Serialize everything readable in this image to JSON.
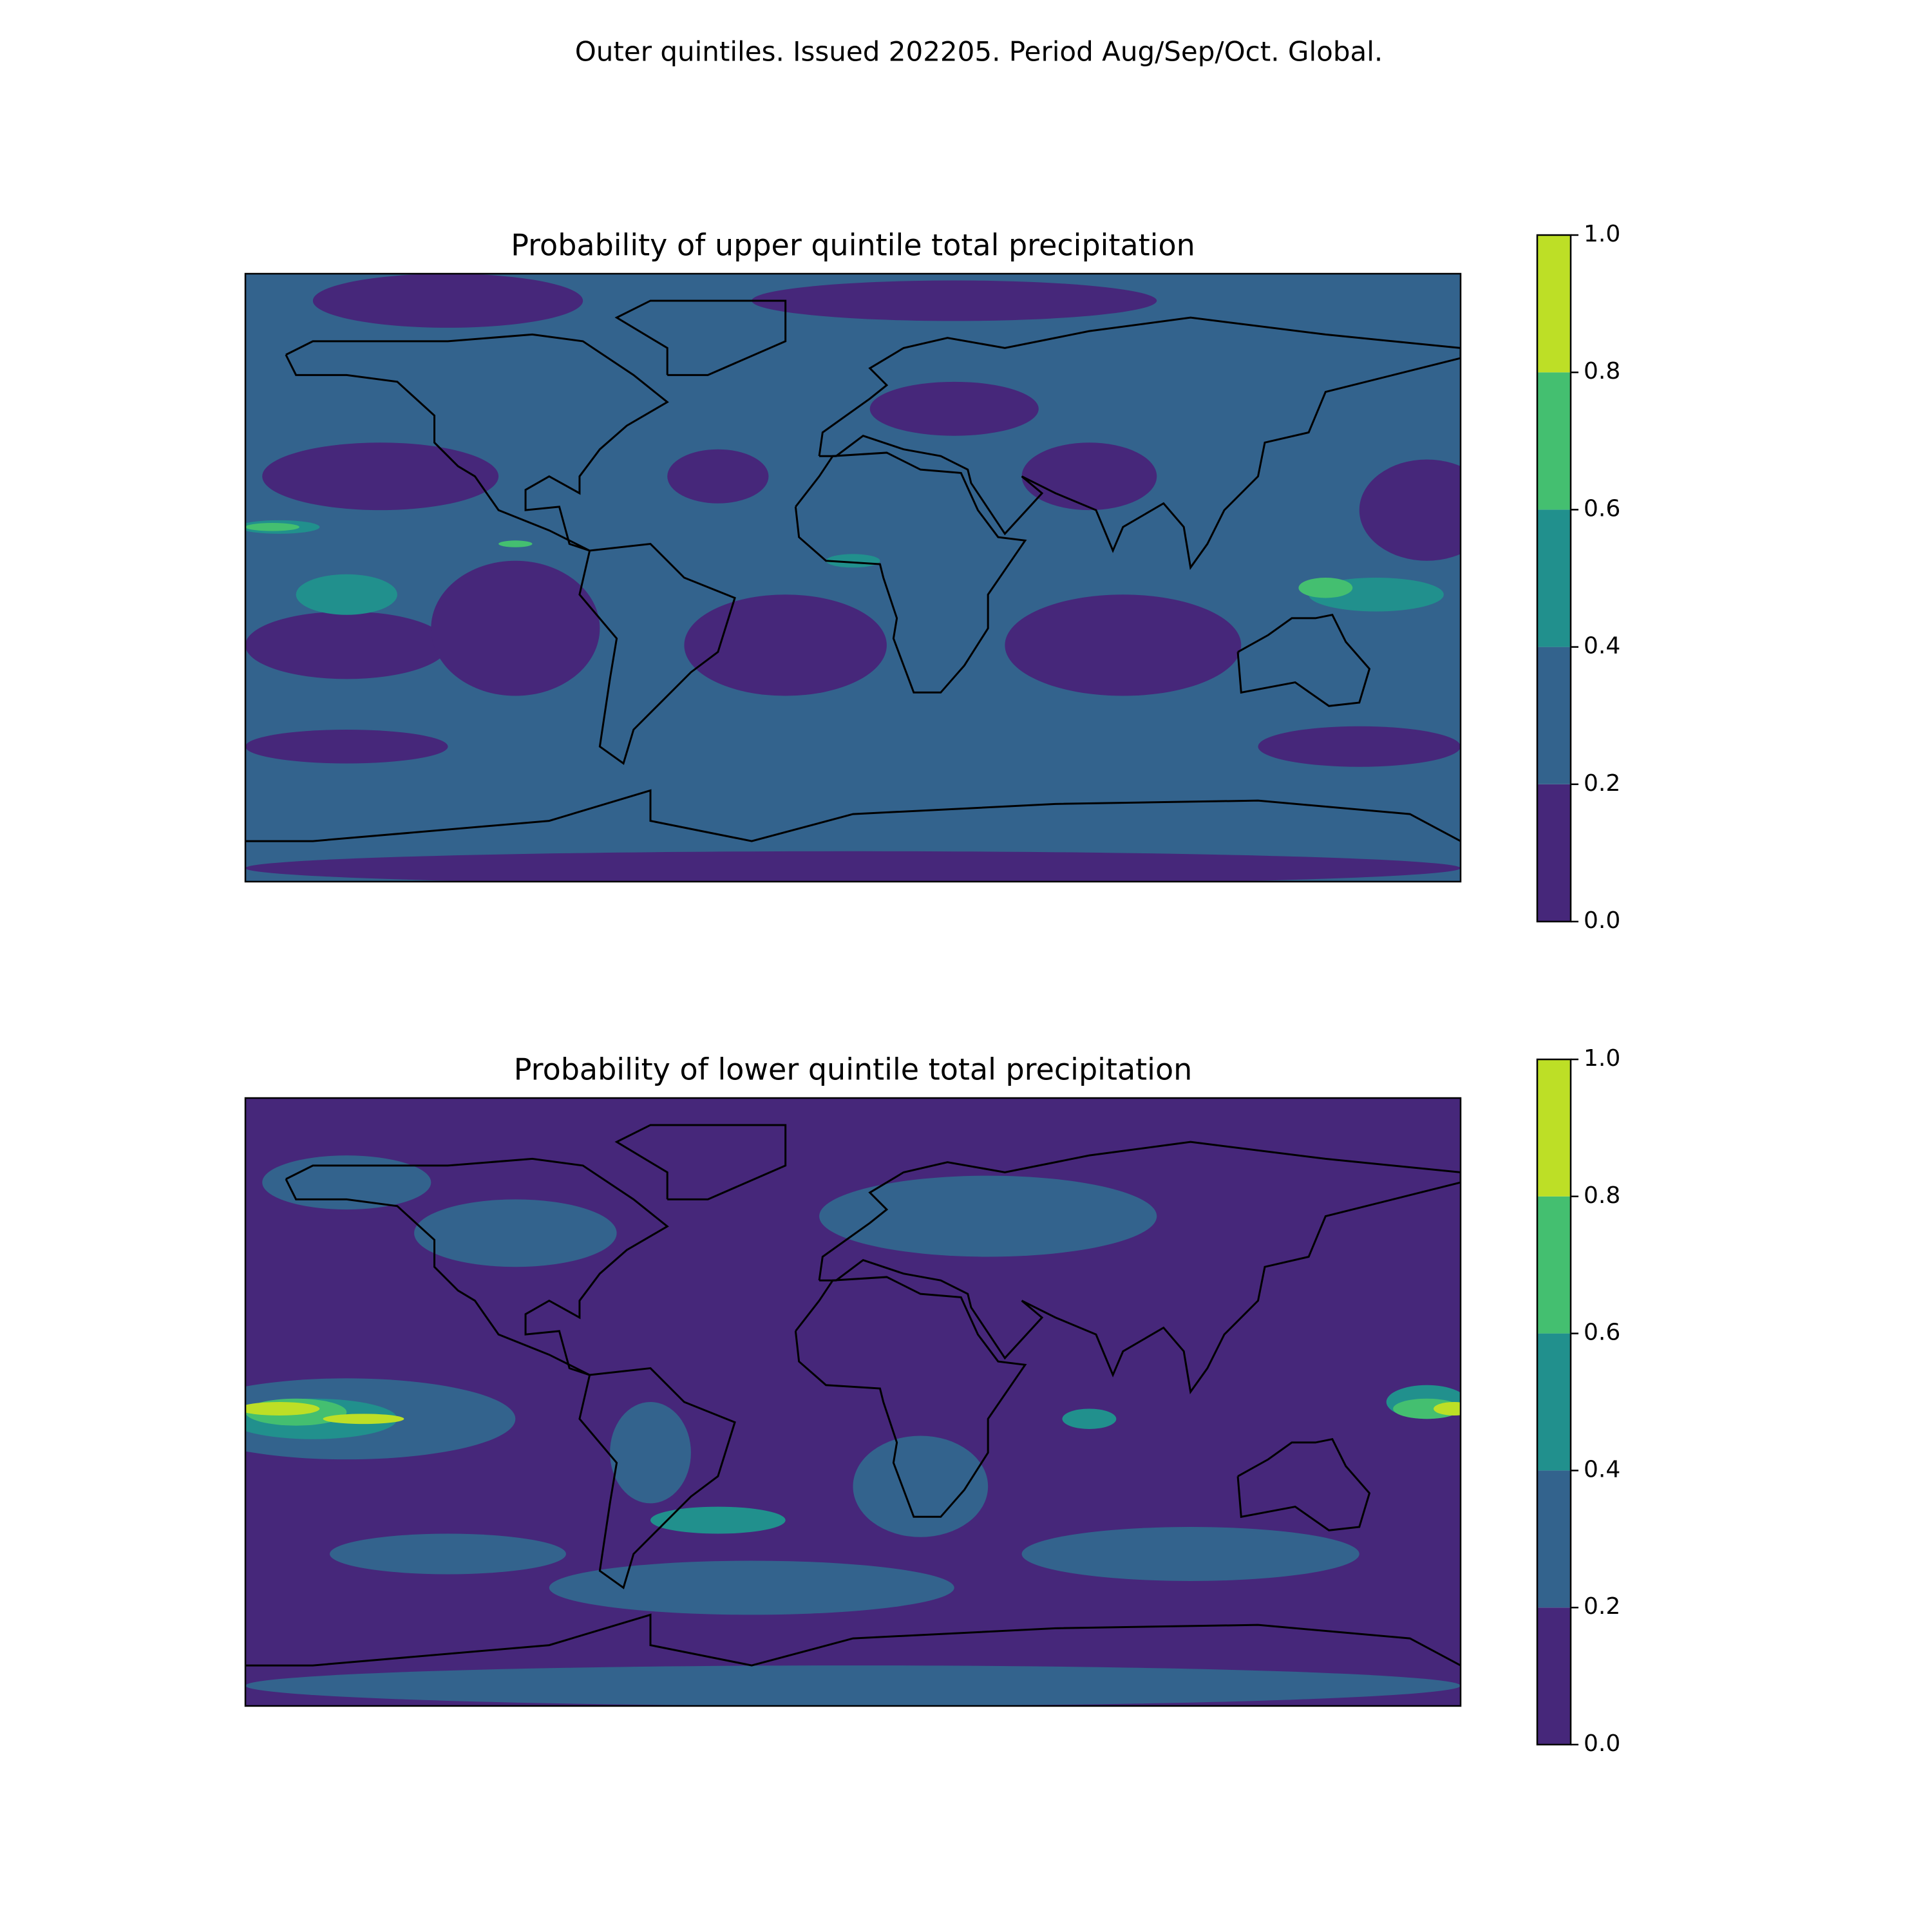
{
  "title": "Outer quintiles. Issued 202205. Period Aug/Sep/Oct. Global.",
  "chart_data": [
    {
      "type": "contour-map",
      "title": "Probability of upper quintile total precipitation",
      "levels": [
        0,
        0.2,
        0.4,
        0.6,
        0.8,
        1
      ],
      "colors": [
        "#46277a",
        "#33638d",
        "#21908d",
        "#44bf70",
        "#bddf26"
      ],
      "ylim": [
        0,
        1
      ],
      "yticks": [
        {
          "value": 0,
          "label": "0.0"
        },
        0.2,
        0.4,
        0.6,
        0.8,
        {
          "value": 1,
          "label": "1.0"
        }
      ]
    },
    {
      "type": "contour-map",
      "title": "Probability of lower quintile total precipitation",
      "levels": [
        0,
        0.2,
        0.4,
        0.6,
        0.8,
        1
      ],
      "colors": [
        "#46277a",
        "#33638d",
        "#21908d",
        "#44bf70",
        "#bddf26"
      ],
      "ylim": [
        0,
        1
      ],
      "yticks": [
        {
          "value": 0,
          "label": "0.0"
        },
        0.2,
        0.4,
        0.6,
        0.8,
        {
          "value": 1,
          "label": "1.0"
        }
      ]
    }
  ]
}
